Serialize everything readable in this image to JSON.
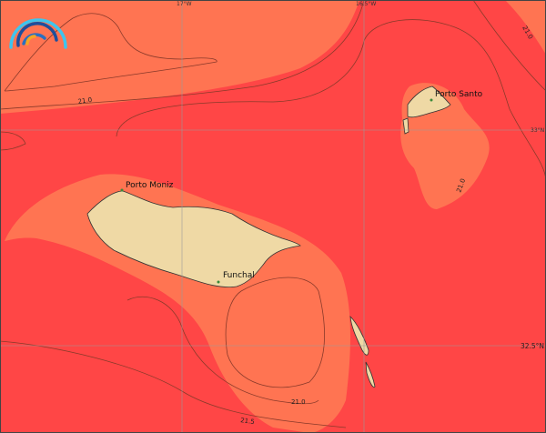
{
  "map": {
    "colors": {
      "warm_band": "#ff7452",
      "hot_band": "#ff4646",
      "land": "#efd9a5",
      "contour": "#8a3a2a",
      "grid": "#999999",
      "place_marker": "#3a8a3a"
    },
    "grid_labels": {
      "lon_17": "17°W",
      "lon_16_5": "16.5°W",
      "lat_33": "33°N",
      "lat_32_5": "32.5°N"
    },
    "places": [
      "Porto Santo",
      "Porto Moniz",
      "Funchal"
    ],
    "contour_labels": [
      "21.0",
      "21.0",
      "21.0",
      "21.0",
      "21.5"
    ],
    "logo_icon": "rainbow-arcs-logo"
  }
}
